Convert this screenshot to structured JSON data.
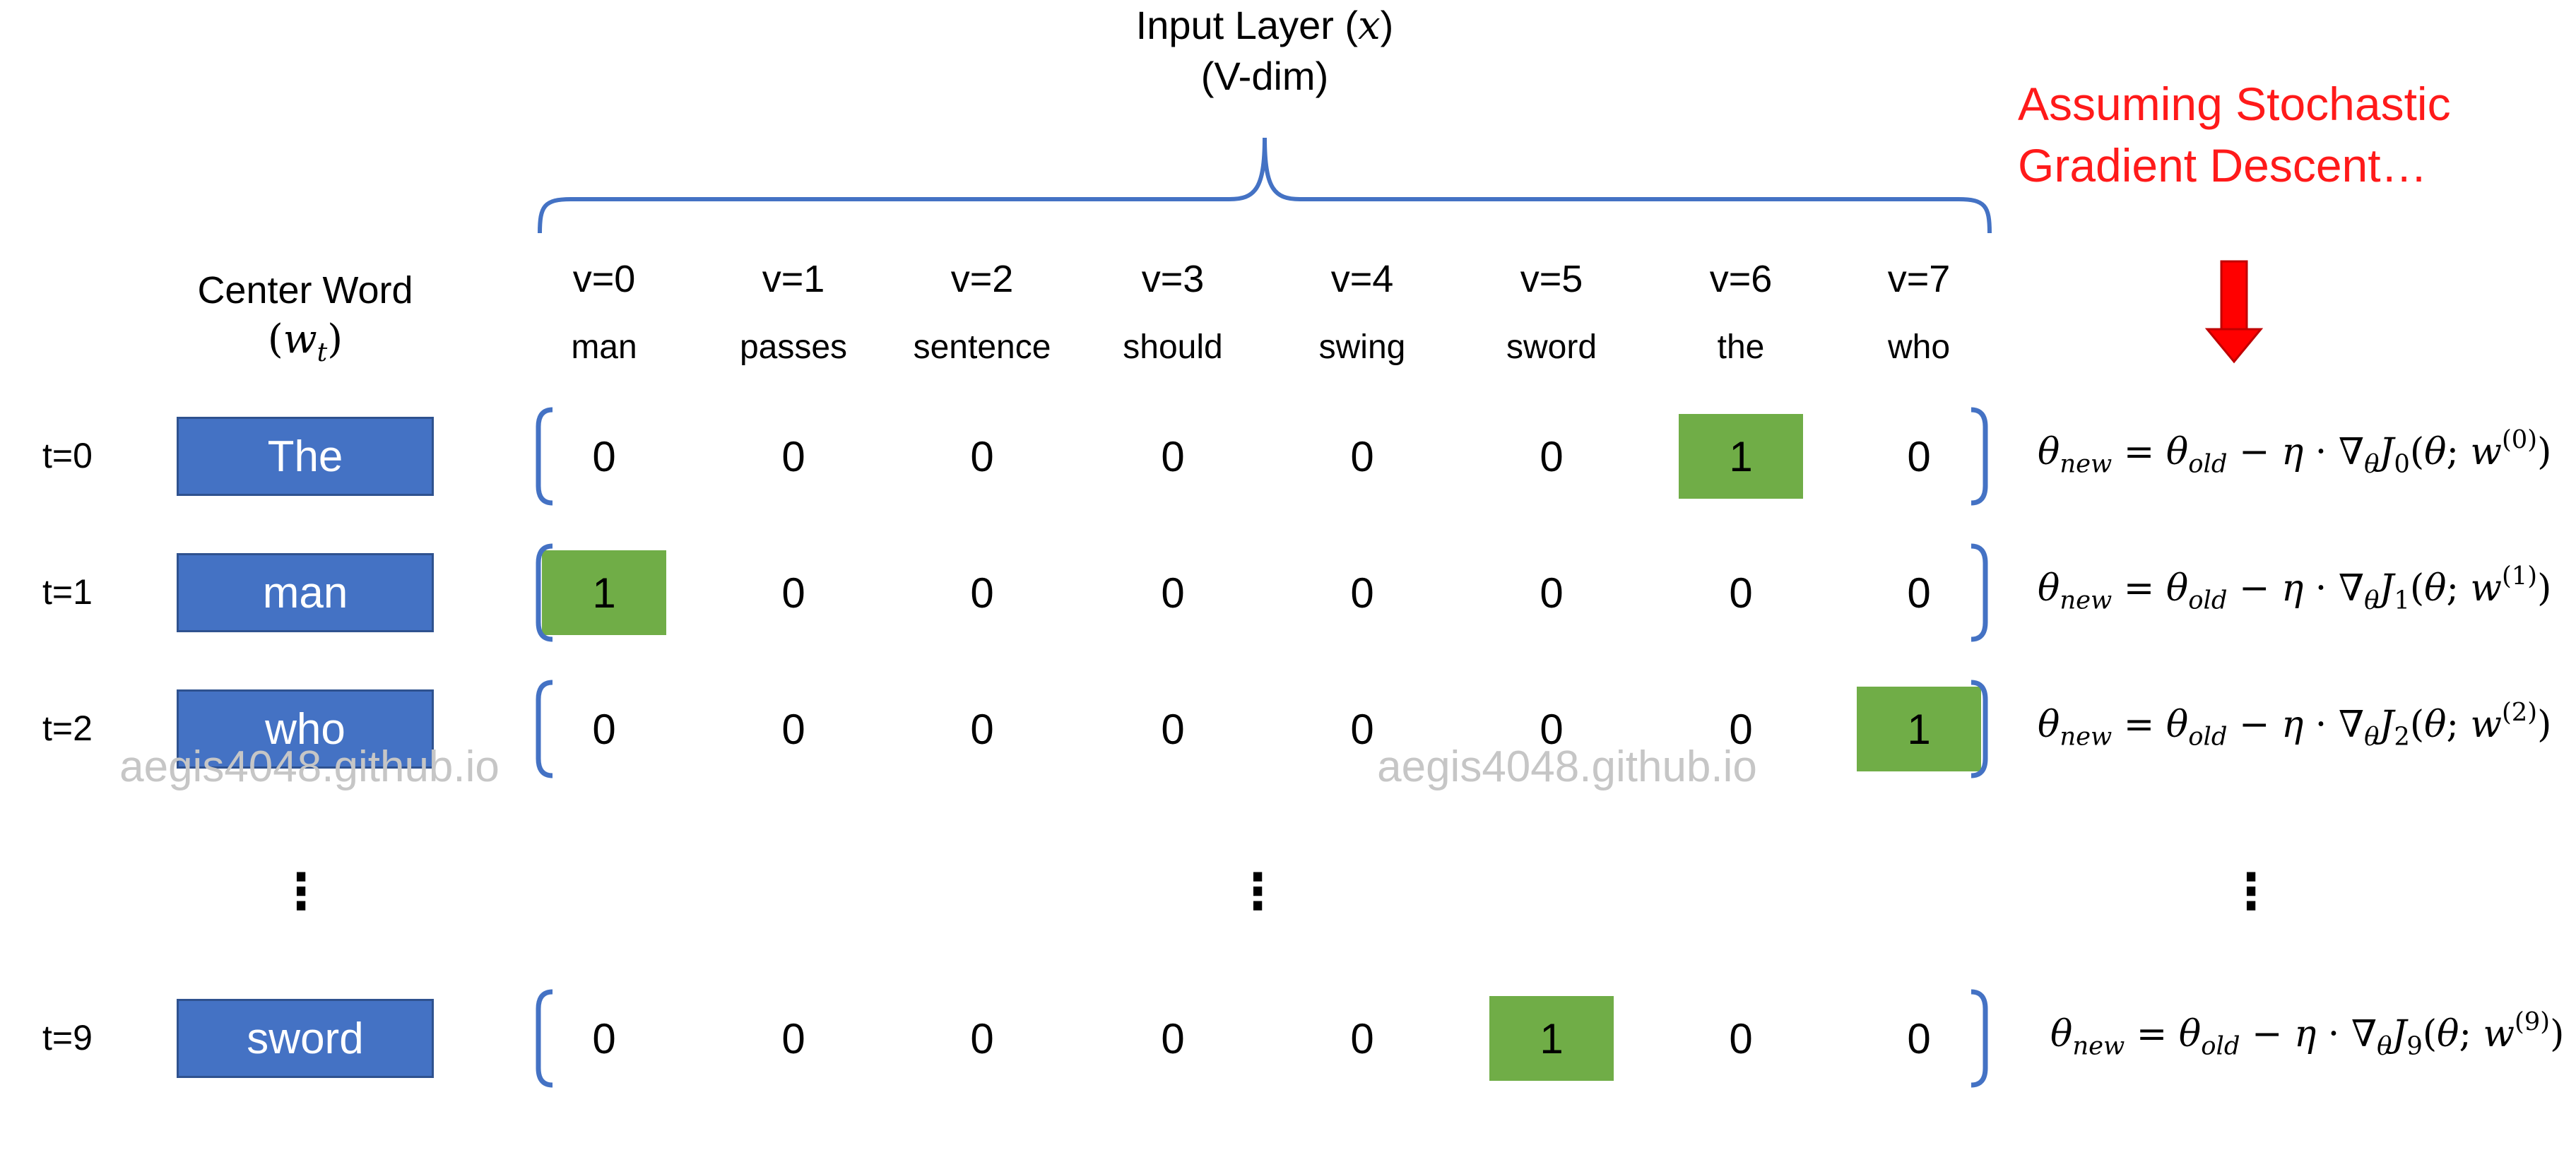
{
  "input_layer": {
    "title": "Input Layer (",
    "var": "x",
    "close": ")",
    "subtitle": "(V-dim)"
  },
  "note": {
    "line1": "Assuming Stochastic",
    "line2": "Gradient Descent…"
  },
  "center_word": {
    "label": "Center Word",
    "sym_open": "(",
    "sym": "w",
    "sym_sub": "t",
    "sym_close": ")"
  },
  "vocab": [
    {
      "index": "v=0",
      "word": "man"
    },
    {
      "index": "v=1",
      "word": "passes"
    },
    {
      "index": "v=2",
      "word": "sentence"
    },
    {
      "index": "v=3",
      "word": "should"
    },
    {
      "index": "v=4",
      "word": "swing"
    },
    {
      "index": "v=5",
      "word": "sword"
    },
    {
      "index": "v=6",
      "word": "the"
    },
    {
      "index": "v=7",
      "word": "who"
    }
  ],
  "rows": [
    {
      "t": "t=0",
      "word": "The",
      "vector": [
        "0",
        "0",
        "0",
        "0",
        "0",
        "0",
        "1",
        "0"
      ],
      "hot": 6,
      "eq_sub": "0",
      "eq_sup": "(0)"
    },
    {
      "t": "t=1",
      "word": "man",
      "vector": [
        "1",
        "0",
        "0",
        "0",
        "0",
        "0",
        "0",
        "0"
      ],
      "hot": 0,
      "eq_sub": "1",
      "eq_sup": "(1)"
    },
    {
      "t": "t=2",
      "word": "who",
      "vector": [
        "0",
        "0",
        "0",
        "0",
        "0",
        "0",
        "0",
        "1"
      ],
      "hot": 7,
      "eq_sub": "2",
      "eq_sup": "(2)"
    },
    {
      "t": "t=9",
      "word": "sword",
      "vector": [
        "0",
        "0",
        "0",
        "0",
        "0",
        "1",
        "0",
        "0"
      ],
      "hot": 5,
      "eq_sub": "9",
      "eq_sup": "(9)"
    }
  ],
  "equation": {
    "theta": "θ",
    "new": "new",
    "eq": " = ",
    "old": "old",
    "minus": " − ",
    "eta": "η",
    "dot": " · ",
    "nabla": "∇",
    "J": "J",
    "open": "(",
    "semi": "; ",
    "w": "w",
    "close": ")"
  },
  "ellipsis": "⋮",
  "watermark": "aegis4048.github.io",
  "colors": {
    "word_box": "#4472c4",
    "hot_cell": "#70ad47",
    "brace": "#4472c4",
    "note": "#ff1a1a",
    "arrow": "#ff0000"
  }
}
